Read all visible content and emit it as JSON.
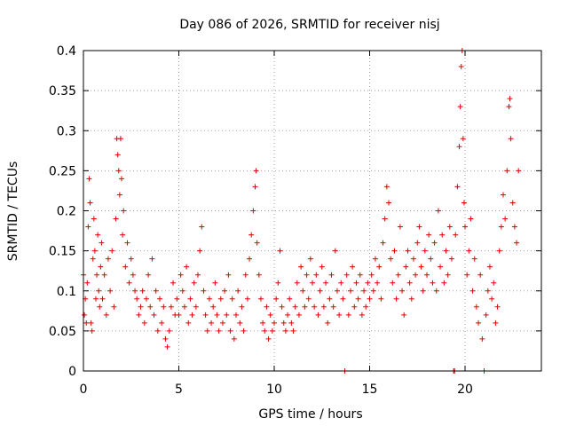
{
  "chart_data": {
    "type": "scatter",
    "title": "Day 086 of 2026, SRMTID for receiver nisj",
    "xlabel": "GPS time / hours",
    "ylabel": "SRMTID / TECUs",
    "xlim": [
      0,
      24
    ],
    "ylim": [
      0,
      0.4
    ],
    "x_ticks": [
      0,
      5,
      10,
      15,
      20
    ],
    "x_tick_labels": [
      "0",
      "5",
      "10",
      "15",
      "20"
    ],
    "y_ticks": [
      0,
      0.05,
      0.1,
      0.15,
      0.2,
      0.25,
      0.3,
      0.35,
      0.4
    ],
    "y_tick_labels": [
      "0",
      "0.05",
      "0.1",
      "0.15",
      "0.2",
      "0.25",
      "0.3",
      "0.35",
      "0.4"
    ],
    "grid": true,
    "marker": "plus",
    "color": "#e00000",
    "series": [
      {
        "name": "SRMTID",
        "points": [
          [
            0.0,
            0.12
          ],
          [
            0.05,
            0.07
          ],
          [
            0.1,
            0.09
          ],
          [
            0.15,
            0.06
          ],
          [
            0.2,
            0.11
          ],
          [
            0.25,
            0.18
          ],
          [
            0.3,
            0.24
          ],
          [
            0.35,
            0.21
          ],
          [
            0.4,
            0.06
          ],
          [
            0.45,
            0.05
          ],
          [
            0.5,
            0.14
          ],
          [
            0.55,
            0.19
          ],
          [
            0.6,
            0.15
          ],
          [
            0.65,
            0.09
          ],
          [
            0.7,
            0.12
          ],
          [
            0.75,
            0.17
          ],
          [
            0.8,
            0.1
          ],
          [
            0.85,
            0.08
          ],
          [
            0.9,
            0.13
          ],
          [
            0.95,
            0.16
          ],
          [
            1.0,
            0.09
          ],
          [
            1.1,
            0.12
          ],
          [
            1.2,
            0.07
          ],
          [
            1.3,
            0.14
          ],
          [
            1.4,
            0.1
          ],
          [
            1.5,
            0.15
          ],
          [
            1.6,
            0.08
          ],
          [
            1.7,
            0.19
          ],
          [
            1.75,
            0.29
          ],
          [
            1.8,
            0.27
          ],
          [
            1.85,
            0.25
          ],
          [
            1.9,
            0.22
          ],
          [
            1.95,
            0.29
          ],
          [
            2.0,
            0.24
          ],
          [
            2.05,
            0.17
          ],
          [
            2.1,
            0.2
          ],
          [
            2.2,
            0.13
          ],
          [
            2.3,
            0.16
          ],
          [
            2.4,
            0.11
          ],
          [
            2.5,
            0.14
          ],
          [
            2.6,
            0.12
          ],
          [
            2.7,
            0.1
          ],
          [
            2.8,
            0.09
          ],
          [
            2.9,
            0.07
          ],
          [
            3.0,
            0.08
          ],
          [
            3.1,
            0.1
          ],
          [
            3.2,
            0.06
          ],
          [
            3.3,
            0.09
          ],
          [
            3.4,
            0.12
          ],
          [
            3.5,
            0.08
          ],
          [
            3.6,
            0.14
          ],
          [
            3.7,
            0.07
          ],
          [
            3.8,
            0.1
          ],
          [
            3.9,
            0.05
          ],
          [
            4.0,
            0.09
          ],
          [
            4.1,
            0.06
          ],
          [
            4.2,
            0.08
          ],
          [
            4.3,
            0.04
          ],
          [
            4.4,
            0.03
          ],
          [
            4.5,
            0.05
          ],
          [
            4.6,
            0.08
          ],
          [
            4.7,
            0.11
          ],
          [
            4.8,
            0.07
          ],
          [
            4.9,
            0.09
          ],
          [
            5.0,
            0.07
          ],
          [
            5.1,
            0.12
          ],
          [
            5.2,
            0.1
          ],
          [
            5.3,
            0.08
          ],
          [
            5.4,
            0.13
          ],
          [
            5.5,
            0.06
          ],
          [
            5.6,
            0.09
          ],
          [
            5.7,
            0.07
          ],
          [
            5.8,
            0.11
          ],
          [
            5.9,
            0.08
          ],
          [
            6.0,
            0.12
          ],
          [
            6.1,
            0.15
          ],
          [
            6.2,
            0.18
          ],
          [
            6.3,
            0.1
          ],
          [
            6.4,
            0.07
          ],
          [
            6.5,
            0.05
          ],
          [
            6.6,
            0.09
          ],
          [
            6.7,
            0.06
          ],
          [
            6.8,
            0.08
          ],
          [
            6.9,
            0.11
          ],
          [
            7.0,
            0.07
          ],
          [
            7.1,
            0.05
          ],
          [
            7.2,
            0.09
          ],
          [
            7.3,
            0.06
          ],
          [
            7.4,
            0.1
          ],
          [
            7.5,
            0.07
          ],
          [
            7.6,
            0.12
          ],
          [
            7.7,
            0.05
          ],
          [
            7.8,
            0.09
          ],
          [
            7.9,
            0.04
          ],
          [
            8.0,
            0.07
          ],
          [
            8.1,
            0.1
          ],
          [
            8.2,
            0.06
          ],
          [
            8.3,
            0.08
          ],
          [
            8.4,
            0.05
          ],
          [
            8.5,
            0.12
          ],
          [
            8.6,
            0.09
          ],
          [
            8.7,
            0.14
          ],
          [
            8.8,
            0.17
          ],
          [
            8.9,
            0.2
          ],
          [
            9.0,
            0.23
          ],
          [
            9.05,
            0.25
          ],
          [
            9.1,
            0.16
          ],
          [
            9.2,
            0.12
          ],
          [
            9.3,
            0.09
          ],
          [
            9.4,
            0.06
          ],
          [
            9.5,
            0.05
          ],
          [
            9.6,
            0.08
          ],
          [
            9.7,
            0.04
          ],
          [
            9.8,
            0.07
          ],
          [
            9.9,
            0.05
          ],
          [
            10.0,
            0.06
          ],
          [
            10.1,
            0.09
          ],
          [
            10.2,
            0.11
          ],
          [
            10.3,
            0.15
          ],
          [
            10.4,
            0.08
          ],
          [
            10.5,
            0.06
          ],
          [
            10.6,
            0.05
          ],
          [
            10.7,
            0.07
          ],
          [
            10.8,
            0.09
          ],
          [
            10.9,
            0.06
          ],
          [
            11.0,
            0.05
          ],
          [
            11.1,
            0.08
          ],
          [
            11.2,
            0.11
          ],
          [
            11.3,
            0.07
          ],
          [
            11.4,
            0.13
          ],
          [
            11.5,
            0.1
          ],
          [
            11.6,
            0.08
          ],
          [
            11.7,
            0.12
          ],
          [
            11.8,
            0.09
          ],
          [
            11.9,
            0.14
          ],
          [
            12.0,
            0.11
          ],
          [
            12.1,
            0.08
          ],
          [
            12.2,
            0.12
          ],
          [
            12.3,
            0.07
          ],
          [
            12.4,
            0.1
          ],
          [
            12.5,
            0.13
          ],
          [
            12.6,
            0.08
          ],
          [
            12.7,
            0.11
          ],
          [
            12.8,
            0.06
          ],
          [
            12.9,
            0.09
          ],
          [
            13.0,
            0.12
          ],
          [
            13.1,
            0.08
          ],
          [
            13.2,
            0.15
          ],
          [
            13.3,
            0.1
          ],
          [
            13.4,
            0.07
          ],
          [
            13.5,
            0.11
          ],
          [
            13.6,
            0.09
          ],
          [
            13.7,
            0.0
          ],
          [
            13.8,
            0.12
          ],
          [
            13.9,
            0.07
          ],
          [
            14.0,
            0.1
          ],
          [
            14.1,
            0.13
          ],
          [
            14.2,
            0.08
          ],
          [
            14.3,
            0.11
          ],
          [
            14.4,
            0.09
          ],
          [
            14.5,
            0.12
          ],
          [
            14.6,
            0.07
          ],
          [
            14.7,
            0.1
          ],
          [
            14.8,
            0.08
          ],
          [
            14.9,
            0.11
          ],
          [
            15.0,
            0.09
          ],
          [
            15.1,
            0.12
          ],
          [
            15.2,
            0.1
          ],
          [
            15.3,
            0.14
          ],
          [
            15.4,
            0.11
          ],
          [
            15.5,
            0.13
          ],
          [
            15.6,
            0.09
          ],
          [
            15.7,
            0.16
          ],
          [
            15.8,
            0.19
          ],
          [
            15.9,
            0.23
          ],
          [
            16.0,
            0.21
          ],
          [
            16.1,
            0.14
          ],
          [
            16.2,
            0.11
          ],
          [
            16.3,
            0.15
          ],
          [
            16.4,
            0.09
          ],
          [
            16.5,
            0.12
          ],
          [
            16.6,
            0.18
          ],
          [
            16.7,
            0.1
          ],
          [
            16.8,
            0.07
          ],
          [
            16.9,
            0.13
          ],
          [
            17.0,
            0.15
          ],
          [
            17.1,
            0.11
          ],
          [
            17.2,
            0.09
          ],
          [
            17.3,
            0.14
          ],
          [
            17.4,
            0.12
          ],
          [
            17.5,
            0.16
          ],
          [
            17.6,
            0.18
          ],
          [
            17.7,
            0.13
          ],
          [
            17.8,
            0.1
          ],
          [
            17.9,
            0.15
          ],
          [
            18.0,
            0.12
          ],
          [
            18.1,
            0.17
          ],
          [
            18.2,
            0.14
          ],
          [
            18.3,
            0.11
          ],
          [
            18.4,
            0.16
          ],
          [
            18.5,
            0.1
          ],
          [
            18.6,
            0.2
          ],
          [
            18.7,
            0.13
          ],
          [
            18.8,
            0.17
          ],
          [
            18.9,
            0.11
          ],
          [
            19.0,
            0.15
          ],
          [
            19.1,
            0.12
          ],
          [
            19.2,
            0.18
          ],
          [
            19.3,
            0.14
          ],
          [
            19.4,
            0.0
          ],
          [
            19.45,
            0.0
          ],
          [
            19.5,
            0.17
          ],
          [
            19.6,
            0.23
          ],
          [
            19.7,
            0.28
          ],
          [
            19.75,
            0.33
          ],
          [
            19.8,
            0.38
          ],
          [
            19.85,
            0.4
          ],
          [
            19.9,
            0.29
          ],
          [
            19.95,
            0.21
          ],
          [
            20.0,
            0.18
          ],
          [
            20.1,
            0.12
          ],
          [
            20.2,
            0.15
          ],
          [
            20.3,
            0.19
          ],
          [
            20.4,
            0.1
          ],
          [
            20.5,
            0.14
          ],
          [
            20.6,
            0.08
          ],
          [
            20.7,
            0.06
          ],
          [
            20.8,
            0.12
          ],
          [
            20.9,
            0.04
          ],
          [
            21.0,
            0.0
          ],
          [
            21.1,
            0.07
          ],
          [
            21.2,
            0.1
          ],
          [
            21.3,
            0.13
          ],
          [
            21.4,
            0.09
          ],
          [
            21.5,
            0.11
          ],
          [
            21.6,
            0.06
          ],
          [
            21.7,
            0.08
          ],
          [
            21.8,
            0.15
          ],
          [
            21.9,
            0.18
          ],
          [
            22.0,
            0.22
          ],
          [
            22.1,
            0.19
          ],
          [
            22.2,
            0.25
          ],
          [
            22.3,
            0.33
          ],
          [
            22.35,
            0.34
          ],
          [
            22.4,
            0.29
          ],
          [
            22.5,
            0.21
          ],
          [
            22.6,
            0.18
          ],
          [
            22.7,
            0.16
          ],
          [
            22.8,
            0.25
          ]
        ]
      }
    ]
  }
}
